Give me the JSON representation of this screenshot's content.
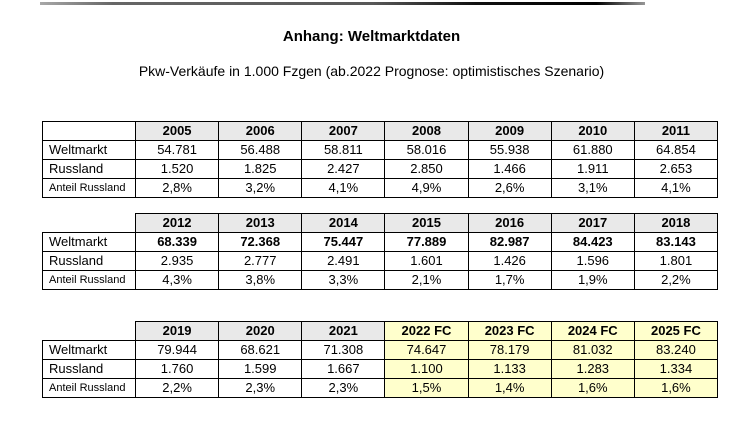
{
  "page": {
    "title": "Anhang: Weltmarktdaten",
    "subtitle": "Pkw-Verkäufe in 1.000 Fzgen (ab.2022 Prognose: optimistisches Szenario)"
  },
  "colors": {
    "header_fill": "#e9e9e9",
    "forecast_fill": "#ffffcc",
    "border": "#000000",
    "rule_dark": "#000000",
    "rule_gray": "#999999"
  },
  "tables": [
    {
      "name": "table-pkw-sales-2005-2011",
      "corner_cell_boxed": true,
      "bold_world_row": false,
      "forecast_start": null,
      "columns": [
        "2005",
        "2006",
        "2007",
        "2008",
        "2009",
        "2010",
        "2011"
      ],
      "rows": [
        {
          "label": "Weltmarkt",
          "small_label": false,
          "values": [
            "54.781",
            "56.488",
            "58.811",
            "58.016",
            "55.938",
            "61.880",
            "64.854"
          ]
        },
        {
          "label": "Russland",
          "small_label": false,
          "values": [
            "1.520",
            "1.825",
            "2.427",
            "2.850",
            "1.466",
            "1.911",
            "2.653"
          ]
        },
        {
          "label": "Anteil Russland",
          "small_label": true,
          "values": [
            "2,8%",
            "3,2%",
            "4,1%",
            "4,9%",
            "2,6%",
            "3,1%",
            "4,1%"
          ]
        }
      ]
    },
    {
      "name": "table-pkw-sales-2012-2018",
      "corner_cell_boxed": false,
      "bold_world_row": true,
      "forecast_start": null,
      "columns": [
        "2012",
        "2013",
        "2014",
        "2015",
        "2016",
        "2017",
        "2018"
      ],
      "rows": [
        {
          "label": "Weltmarkt",
          "small_label": false,
          "values": [
            "68.339",
            "72.368",
            "75.447",
            "77.889",
            "82.987",
            "84.423",
            "83.143"
          ]
        },
        {
          "label": "Russland",
          "small_label": false,
          "values": [
            "2.935",
            "2.777",
            "2.491",
            "1.601",
            "1.426",
            "1.596",
            "1.801"
          ]
        },
        {
          "label": "Anteil Russland",
          "small_label": true,
          "values": [
            "4,3%",
            "3,8%",
            "3,3%",
            "2,1%",
            "1,7%",
            "1,9%",
            "2,2%"
          ]
        }
      ]
    },
    {
      "name": "table-pkw-sales-2019-2025fc",
      "corner_cell_boxed": false,
      "bold_world_row": false,
      "forecast_start": 3,
      "columns": [
        "2019",
        "2020",
        "2021",
        "2022 FC",
        "2023 FC",
        "2024 FC",
        "2025 FC"
      ],
      "rows": [
        {
          "label": "Weltmarkt",
          "small_label": false,
          "values": [
            "79.944",
            "68.621",
            "71.308",
            "74.647",
            "78.179",
            "81.032",
            "83.240"
          ]
        },
        {
          "label": "Russland",
          "small_label": false,
          "values": [
            "1.760",
            "1.599",
            "1.667",
            "1.100",
            "1.133",
            "1.283",
            "1.334"
          ]
        },
        {
          "label": "Anteil Russland",
          "small_label": true,
          "values": [
            "2,2%",
            "2,3%",
            "2,3%",
            "1,5%",
            "1,4%",
            "1,6%",
            "1,6%"
          ]
        }
      ]
    }
  ]
}
